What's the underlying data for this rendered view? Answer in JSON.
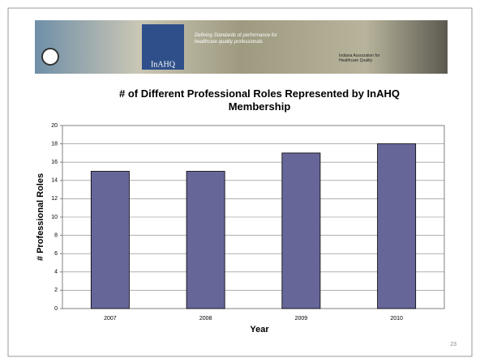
{
  "banner": {
    "logo_text": "InAHQ",
    "tagline": "Defining Standards of performance for healthcare quality professionals",
    "association": "Indiana Association for Healthcare Quality"
  },
  "chart_data": {
    "type": "bar",
    "title": "# of Different Professional Roles Represented by InAHQ Membership",
    "x_label": "Year",
    "y_label": "# Professional Roles",
    "categories": [
      "2007",
      "2008",
      "2009",
      "2010"
    ],
    "values": [
      15,
      15,
      17,
      18
    ],
    "color": "#666699",
    "ylim": [
      0,
      20
    ],
    "yticks": [
      0,
      2,
      4,
      6,
      8,
      10,
      12,
      14,
      16,
      18,
      20
    ],
    "grid": true
  },
  "page_number": "23"
}
